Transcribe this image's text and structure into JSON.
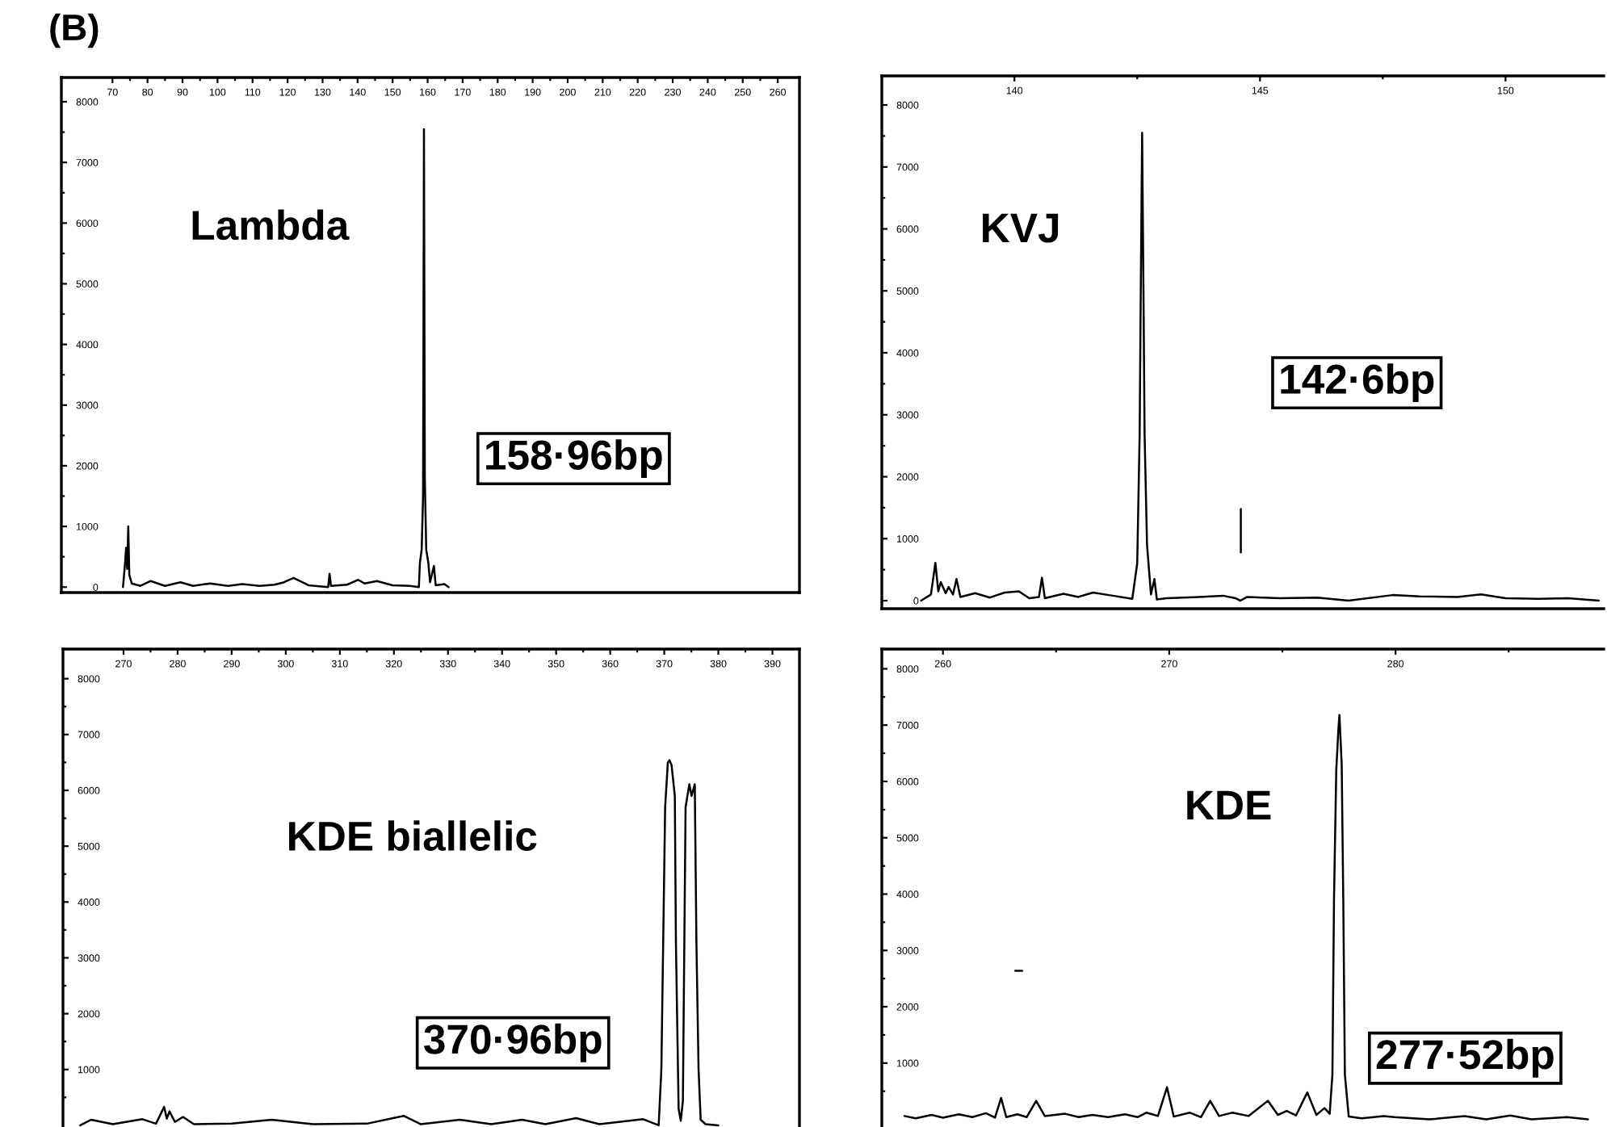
{
  "chart_data": [
    {
      "type": "line",
      "title": "(B)",
      "annotations": [
        "Lambda",
        "158·96bp"
      ],
      "x": [
        73.0,
        73.6,
        73.9,
        74.2,
        74.5,
        74.8,
        75.5,
        78.0,
        80.9,
        85.0,
        89.4,
        93.0,
        97.9,
        103.0,
        107.1,
        112.0,
        116.3,
        119.0,
        121.7,
        126.0,
        131.6,
        132.0,
        132.4,
        137.0,
        140.2,
        142.0,
        145.5,
        150.0,
        155.0,
        157.5,
        157.8,
        158.3,
        158.7,
        158.96,
        159.2,
        159.6,
        160.2,
        160.7,
        161.8,
        162.3,
        164.8,
        166.0
      ],
      "series": [
        {
          "color": "#000000",
          "values": [
            0,
            400,
            650,
            300,
            1000,
            200,
            60,
            20,
            100,
            20,
            80,
            20,
            60,
            20,
            50,
            20,
            40,
            80,
            150,
            30,
            0,
            220,
            20,
            40,
            120,
            60,
            100,
            30,
            20,
            0,
            400,
            620,
            1500,
            7550,
            1800,
            620,
            400,
            80,
            350,
            30,
            50,
            0
          ]
        }
      ],
      "xlim": [
        55.4,
        266.2
      ],
      "xticks": [
        70,
        {
          "value": 75,
          "label": null
        },
        80,
        {
          "value": 85,
          "label": null
        },
        90,
        {
          "value": 95,
          "label": null
        },
        100,
        {
          "value": 105,
          "label": null
        },
        110,
        {
          "value": 115,
          "label": null
        },
        120,
        {
          "value": 125,
          "label": null
        },
        130,
        {
          "value": 135,
          "label": null
        },
        140,
        {
          "value": 145,
          "label": null
        },
        150,
        {
          "value": 155,
          "label": null
        },
        160,
        {
          "value": 165,
          "label": null
        },
        170,
        {
          "value": 175,
          "label": null
        },
        180,
        {
          "value": 185,
          "label": null
        },
        190,
        {
          "value": 195,
          "label": null
        },
        200,
        {
          "value": 205,
          "label": null
        },
        210,
        {
          "value": 215,
          "label": null
        },
        220,
        {
          "value": 225,
          "label": null
        },
        230,
        {
          "value": 235,
          "label": null
        },
        240,
        {
          "value": 245,
          "label": null
        },
        250,
        {
          "value": 255,
          "label": null
        },
        260
      ],
      "ylim": [
        -90,
        8400
      ],
      "yticks": [
        0,
        {
          "value": 500,
          "label": null
        },
        1000,
        {
          "value": 1500,
          "label": null
        },
        2000,
        {
          "value": 2500,
          "label": null
        },
        3000,
        {
          "value": 3500,
          "label": null
        },
        4000,
        {
          "value": 4500,
          "label": null
        },
        5000,
        {
          "value": 5500,
          "label": null
        },
        6000,
        {
          "value": 6500,
          "label": null
        },
        7000,
        {
          "value": 7500,
          "label": null
        },
        8000
      ]
    },
    {
      "type": "line",
      "annotations": [
        "KVJ",
        "142·6bp"
      ],
      "x": [
        138.1,
        138.3,
        138.39,
        138.45,
        138.5,
        138.6,
        138.66,
        138.75,
        138.82,
        138.9,
        139.2,
        139.5,
        139.8,
        140.09,
        140.3,
        140.5,
        140.56,
        140.62,
        141.0,
        141.3,
        141.6,
        142.0,
        142.4,
        142.5,
        142.55,
        142.57,
        142.6,
        142.63,
        142.65,
        142.7,
        142.78,
        142.85,
        142.9,
        143.1,
        143.76,
        144.25,
        144.5,
        144.6,
        144.74,
        145.4,
        146.17,
        146.8,
        147.7,
        148.25,
        149.02,
        149.5,
        150.0,
        150.67,
        151.27,
        151.9
      ],
      "series": [
        {
          "color": "#000000",
          "values": [
            0,
            100,
            610,
            150,
            300,
            120,
            220,
            100,
            350,
            60,
            120,
            50,
            130,
            150,
            40,
            60,
            370,
            40,
            110,
            60,
            130,
            80,
            30,
            600,
            2700,
            4750,
            7550,
            4750,
            2700,
            900,
            100,
            350,
            20,
            40,
            60,
            80,
            40,
            0,
            60,
            40,
            50,
            0,
            90,
            70,
            60,
            100,
            40,
            30,
            40,
            0
          ]
        },
        {
          "color": "#000000",
          "x": [
            144.61,
            144.61
          ],
          "values": [
            780,
            1480
          ]
        }
      ],
      "xlim": [
        137.3,
        152.0
      ],
      "xticks": [
        140,
        {
          "value": 142.5,
          "label": null
        },
        145,
        {
          "value": 147.5,
          "label": null
        },
        150
      ],
      "ylim": [
        -130,
        8470
      ],
      "yticks": [
        0,
        {
          "value": 500,
          "label": null
        },
        1000,
        {
          "value": 1500,
          "label": null
        },
        2000,
        {
          "value": 2500,
          "label": null
        },
        3000,
        {
          "value": 3500,
          "label": null
        },
        4000,
        {
          "value": 4500,
          "label": null
        },
        5000,
        {
          "value": 5500,
          "label": null
        },
        6000,
        {
          "value": 6500,
          "label": null
        },
        7000,
        {
          "value": 7500,
          "label": null
        },
        8000
      ]
    },
    {
      "type": "line",
      "annotations": [
        "KDE biallelic",
        "370·96bp"
      ],
      "x": [
        262.0,
        264.0,
        268.0,
        273.5,
        276.0,
        277.5,
        278.0,
        278.5,
        279.5,
        281.0,
        283.0,
        290.0,
        297.4,
        305.0,
        315.0,
        321.8,
        325.0,
        332.2,
        338.0,
        343.7,
        348.0,
        353.7,
        358.0,
        366.1,
        368.5,
        368.96,
        369.46,
        370.16,
        370.66,
        370.96,
        371.35,
        371.95,
        372.15,
        372.65,
        373.05,
        373.44,
        373.94,
        374.64,
        375.04,
        375.64,
        375.94,
        376.34,
        376.73,
        377.63,
        380.0
      ],
      "series": [
        {
          "color": "#000000",
          "values": [
            0,
            100,
            20,
            110,
            30,
            330,
            120,
            250,
            60,
            150,
            20,
            30,
            100,
            20,
            30,
            170,
            20,
            100,
            20,
            100,
            20,
            130,
            20,
            110,
            20,
            0,
            1000,
            5700,
            6500,
            6540,
            6450,
            5900,
            3300,
            300,
            80,
            440,
            5700,
            6110,
            5900,
            6110,
            3300,
            1000,
            100,
            20,
            0
          ]
        }
      ],
      "xlim": [
        258.8,
        395.0
      ],
      "xticks": [
        270,
        {
          "value": 275,
          "label": null
        },
        280,
        {
          "value": 285,
          "label": null
        },
        290,
        {
          "value": 295,
          "label": null
        },
        300,
        {
          "value": 305,
          "label": null
        },
        310,
        {
          "value": 315,
          "label": null
        },
        320,
        {
          "value": 325,
          "label": null
        },
        330,
        {
          "value": 335,
          "label": null
        },
        340,
        {
          "value": 345,
          "label": null
        },
        350,
        {
          "value": 355,
          "label": null
        },
        360,
        {
          "value": 365,
          "label": null
        },
        370,
        {
          "value": 375,
          "label": null
        },
        380,
        {
          "value": 385,
          "label": null
        },
        390
      ],
      "ylim": [
        -30,
        8530
      ],
      "yticks": [
        {
          "value": 500,
          "label": null
        },
        1000,
        {
          "value": 1500,
          "label": null
        },
        2000,
        {
          "value": 2500,
          "label": null
        },
        3000,
        {
          "value": 3500,
          "label": null
        },
        4000,
        {
          "value": 4500,
          "label": null
        },
        5000,
        {
          "value": 5500,
          "label": null
        },
        6000,
        {
          "value": 6500,
          "label": null
        },
        7000,
        {
          "value": 7500,
          "label": null
        },
        8000
      ]
    },
    {
      "type": "line",
      "annotations": [
        "KDE",
        "277·52bp"
      ],
      "x": [
        258.3,
        258.8,
        259.5,
        260.0,
        260.7,
        261.3,
        261.9,
        262.3,
        262.57,
        262.8,
        263.29,
        263.7,
        264.12,
        264.5,
        265.4,
        266.0,
        266.6,
        267.3,
        268.05,
        268.6,
        269.0,
        269.5,
        269.9,
        270.2,
        270.9,
        271.4,
        271.81,
        272.2,
        272.8,
        273.5,
        274.36,
        274.8,
        275.19,
        275.6,
        276.1,
        276.5,
        276.86,
        277.09,
        277.21,
        277.28,
        277.38,
        277.47,
        277.52,
        277.62,
        277.69,
        277.76,
        277.93,
        278.5,
        279.48,
        279.95,
        281.5,
        283.05,
        284.0,
        285.07,
        286.0,
        287.57,
        288.5
      ],
      "series": [
        {
          "color": "#000000",
          "values": [
            60,
            20,
            80,
            30,
            90,
            40,
            110,
            30,
            380,
            40,
            90,
            40,
            330,
            60,
            100,
            40,
            80,
            40,
            90,
            40,
            120,
            60,
            570,
            50,
            120,
            40,
            330,
            60,
            120,
            60,
            330,
            80,
            150,
            70,
            480,
            80,
            200,
            100,
            800,
            3900,
            6200,
            6900,
            7180,
            6300,
            3900,
            800,
            50,
            20,
            60,
            40,
            0,
            60,
            0,
            70,
            0,
            40,
            0
          ]
        },
        {
          "color": "#000000",
          "x": [
            263.2,
            263.5
          ],
          "values": [
            2640,
            2640
          ]
        }
      ],
      "xlim": [
        257.3,
        289.2
      ],
      "xticks": [
        260,
        {
          "value": 265,
          "label": null
        },
        270,
        {
          "value": 275,
          "label": null
        },
        280,
        {
          "value": 285,
          "label": null
        }
      ],
      "ylim": [
        -135,
        8350
      ],
      "yticks": [
        {
          "value": 500,
          "label": null
        },
        1000,
        {
          "value": 1500,
          "label": null
        },
        2000,
        {
          "value": 2500,
          "label": null
        },
        3000,
        {
          "value": 3500,
          "label": null
        },
        4000,
        {
          "value": 4500,
          "label": null
        },
        5000,
        {
          "value": 5500,
          "label": null
        },
        6000,
        {
          "value": 6500,
          "label": null
        },
        7000,
        {
          "value": 7500,
          "label": null
        },
        8000
      ]
    }
  ]
}
